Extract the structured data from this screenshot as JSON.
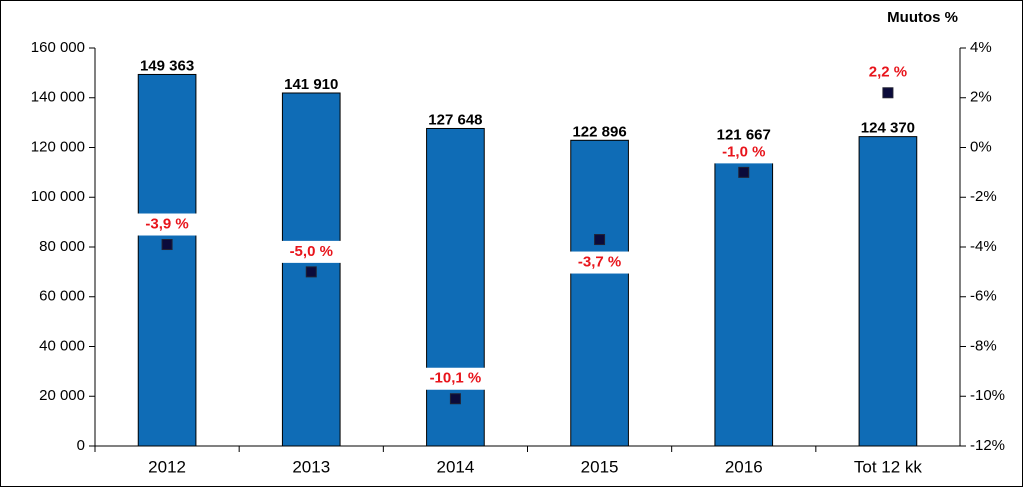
{
  "chart_data": {
    "type": "bar",
    "y2_label": "Muutos %",
    "categories": [
      "2012",
      "2013",
      "2014",
      "2015",
      "2016",
      "Tot 12 kk"
    ],
    "series": [
      {
        "type": "bar",
        "color": "#0f6cb6",
        "values": [
          149363,
          141910,
          127648,
          122896,
          121667,
          124370
        ],
        "value_labels": [
          "149 363",
          "141 910",
          "127 648",
          "122 896",
          "121 667",
          "124 370"
        ]
      },
      {
        "type": "scatter",
        "axis": "y2",
        "color": "#0b0b3b",
        "label_color": "#e8141b",
        "values": [
          -3.9,
          -5.0,
          -10.1,
          -3.7,
          -1.0,
          2.2
        ],
        "value_labels": [
          "-3,9 %",
          "-5,0 %",
          "-10,1 %",
          "-3,7 %",
          "-1,0 %",
          "2,2 %"
        ]
      }
    ],
    "ylim": [
      0,
      160000
    ],
    "yticks": [
      {
        "value": 0,
        "label": "0"
      },
      {
        "value": 20000,
        "label": "20 000"
      },
      {
        "value": 40000,
        "label": "40 000"
      },
      {
        "value": 60000,
        "label": "60 000"
      },
      {
        "value": 80000,
        "label": "80 000"
      },
      {
        "value": 100000,
        "label": "100 000"
      },
      {
        "value": 120000,
        "label": "120 000"
      },
      {
        "value": 140000,
        "label": "140 000"
      },
      {
        "value": 160000,
        "label": "160 000"
      }
    ],
    "y2lim": [
      -12,
      4
    ],
    "y2ticks": [
      {
        "value": -12,
        "label": "-12%"
      },
      {
        "value": -10,
        "label": "-10%"
      },
      {
        "value": -8,
        "label": "-8%"
      },
      {
        "value": -6,
        "label": "-6%"
      },
      {
        "value": -4,
        "label": "-4%"
      },
      {
        "value": -2,
        "label": "-2%"
      },
      {
        "value": 0,
        "label": "0%"
      },
      {
        "value": 2,
        "label": "2%"
      },
      {
        "value": 4,
        "label": "4%"
      }
    ]
  }
}
